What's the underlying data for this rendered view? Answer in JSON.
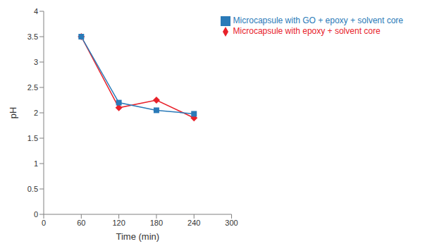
{
  "chart_data": {
    "type": "line",
    "x_label": "Time (min)",
    "y_label": "pH",
    "x": [
      60,
      120,
      180,
      240
    ],
    "series": [
      {
        "name": "Microcapsule with epoxy + solvent core",
        "color": "#e8212a",
        "marker": "diamond",
        "values": [
          3.5,
          2.1,
          2.25,
          1.9
        ]
      },
      {
        "name": "Microcapsule with GO + epoxy + solvent core",
        "color": "#2a7ab8",
        "marker": "square",
        "values": [
          3.5,
          2.2,
          2.05,
          1.98
        ]
      }
    ],
    "xlim": [
      0,
      300
    ],
    "xticks": [
      0,
      60,
      120,
      180,
      240,
      300
    ],
    "ylim": [
      0,
      4
    ],
    "yticks": [
      0,
      0.5,
      1,
      1.5,
      2,
      2.5,
      3,
      3.5,
      4
    ],
    "grid": false,
    "legend": "upper right"
  }
}
